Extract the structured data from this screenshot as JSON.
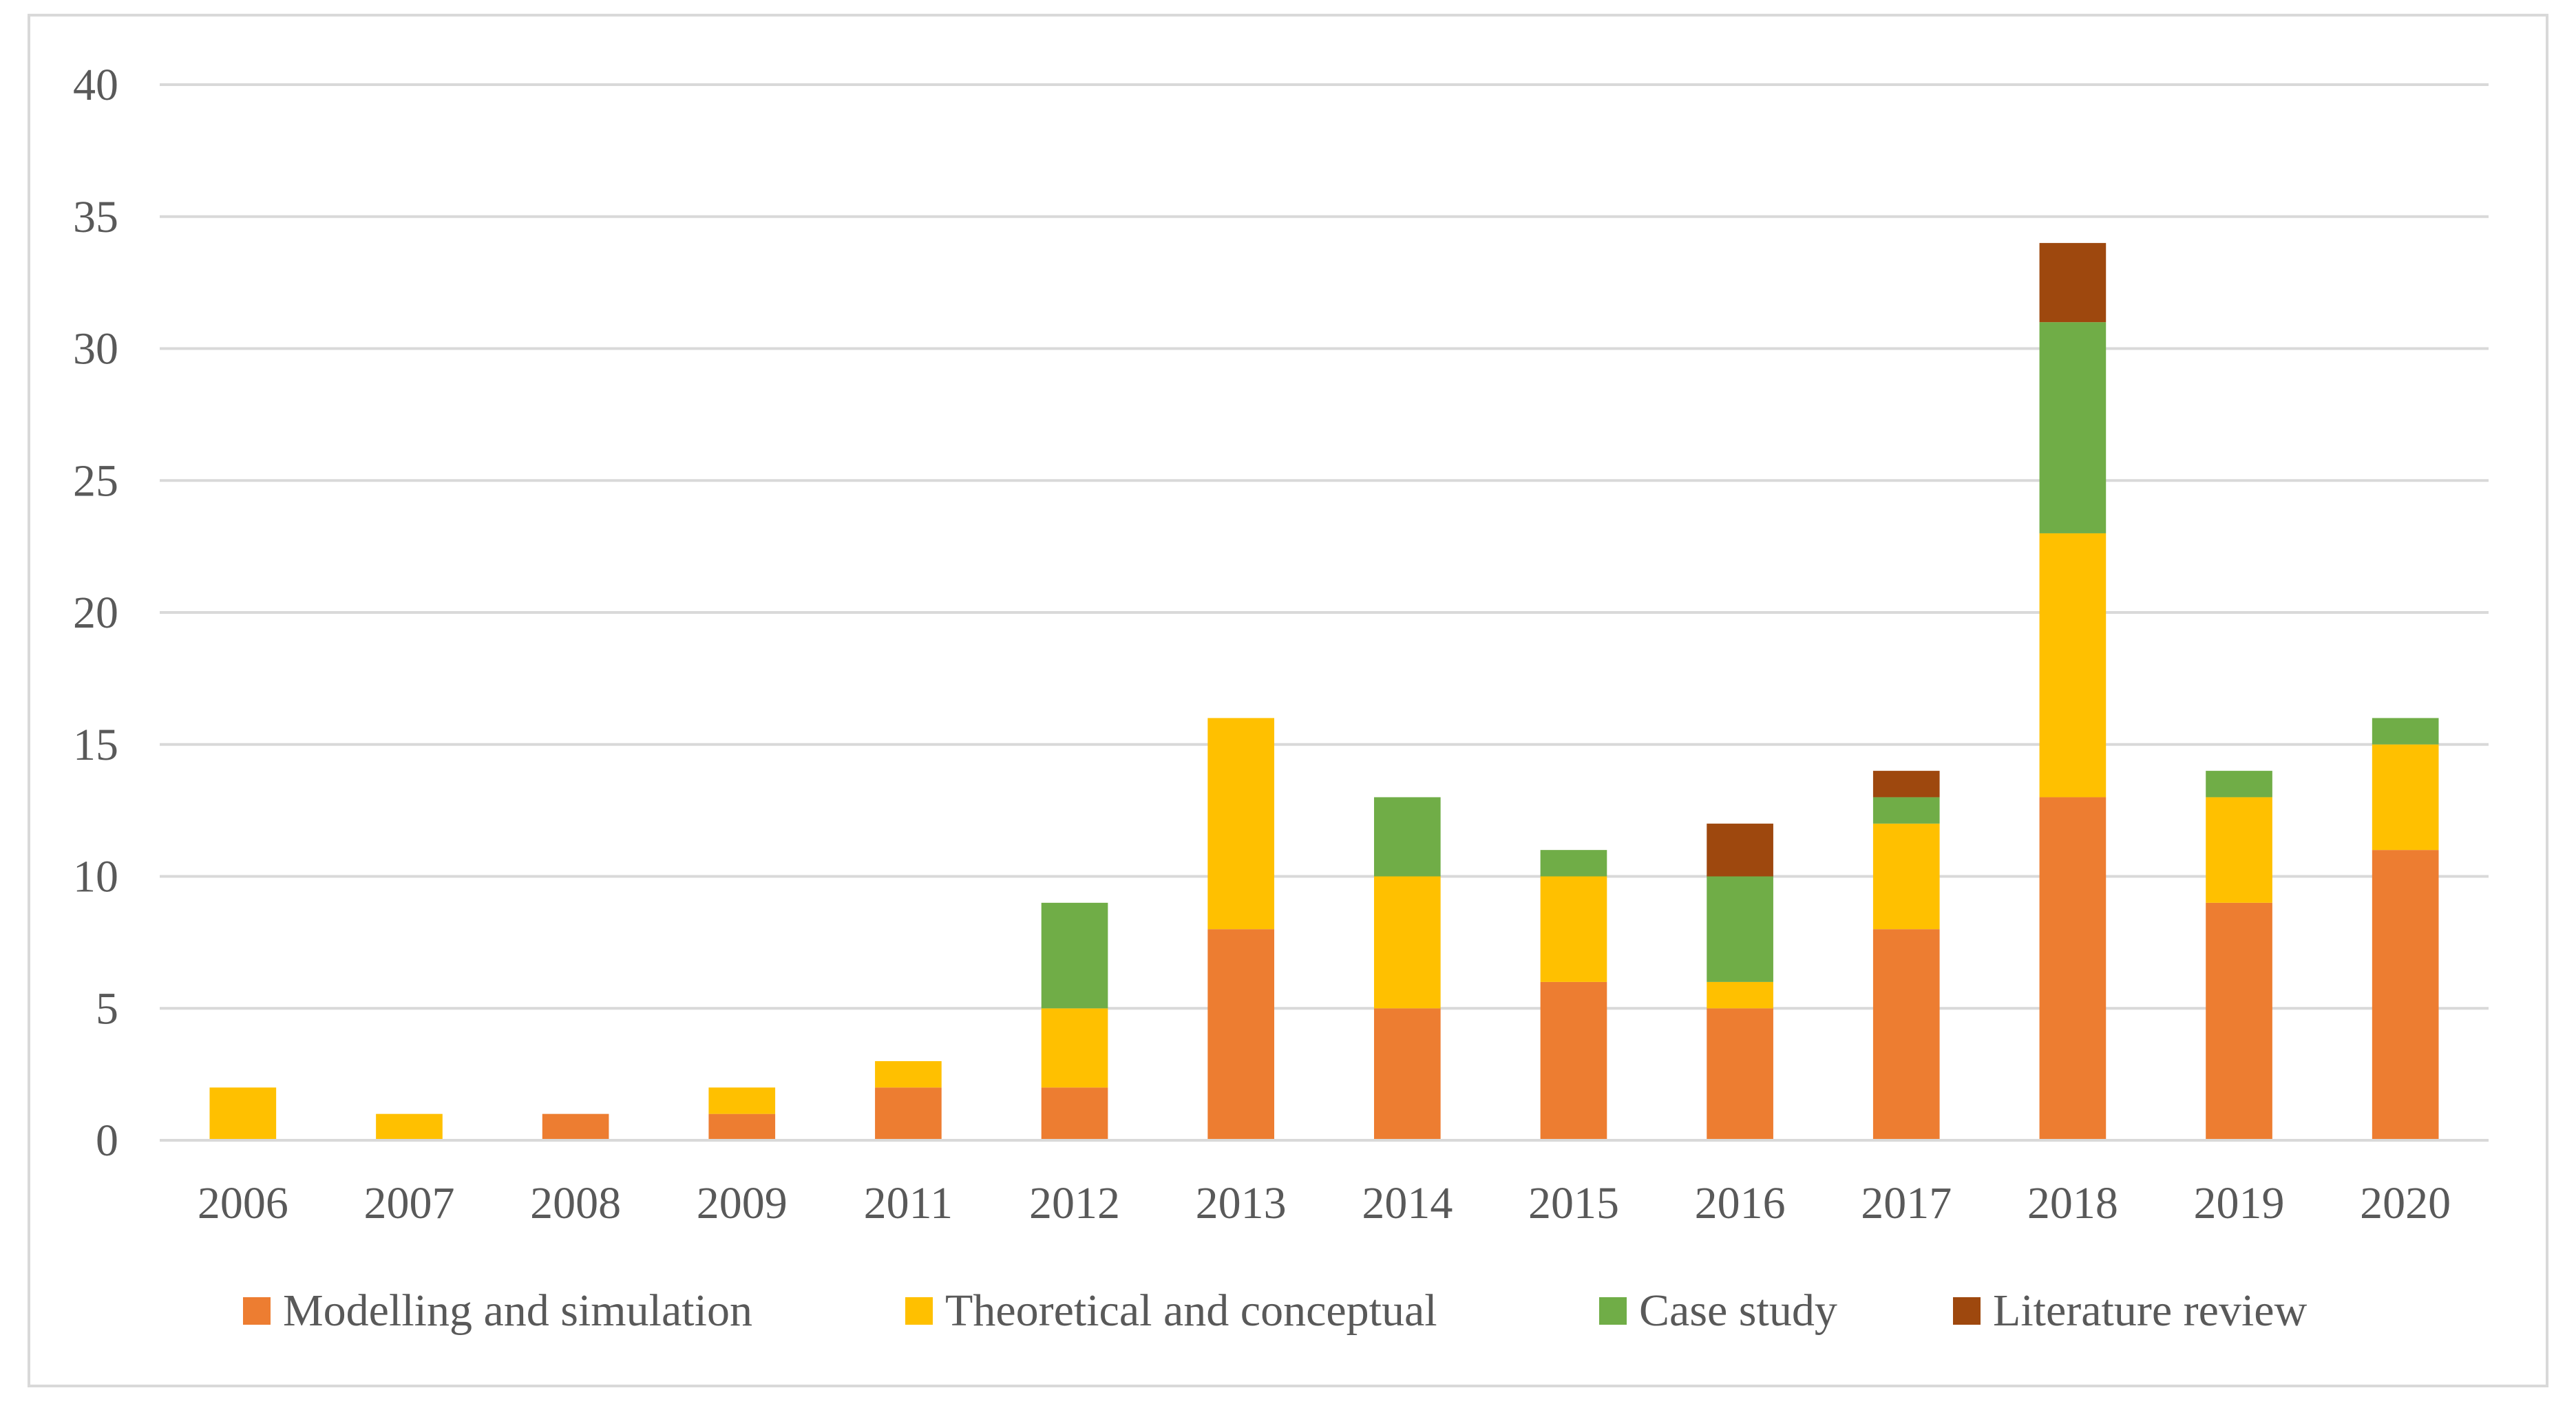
{
  "chart_data": {
    "type": "bar",
    "stacked": true,
    "title": "",
    "xlabel": "",
    "ylabel": "",
    "ylim": [
      0,
      40
    ],
    "yticks": [
      0,
      5,
      10,
      15,
      20,
      25,
      30,
      35,
      40
    ],
    "grid": true,
    "legend_position": "bottom",
    "categories": [
      "2006",
      "2007",
      "2008",
      "2009",
      "2011",
      "2012",
      "2013",
      "2014",
      "2015",
      "2016",
      "2017",
      "2018",
      "2019",
      "2020"
    ],
    "series": [
      {
        "name": "Modelling and simulation",
        "color": "#ED7D31",
        "values": [
          0,
          0,
          1,
          1,
          2,
          2,
          8,
          5,
          6,
          5,
          8,
          13,
          9,
          11
        ]
      },
      {
        "name": "Theoretical and conceptual",
        "color": "#FFC000",
        "values": [
          2,
          1,
          0,
          1,
          1,
          3,
          8,
          5,
          4,
          1,
          4,
          10,
          4,
          4
        ]
      },
      {
        "name": "Case study",
        "color": "#70AD47",
        "values": [
          0,
          0,
          0,
          0,
          0,
          4,
          0,
          3,
          1,
          4,
          1,
          8,
          1,
          1
        ]
      },
      {
        "name": "Literature review",
        "color": "#9E480E",
        "values": [
          0,
          0,
          0,
          0,
          0,
          0,
          0,
          0,
          0,
          2,
          1,
          3,
          0,
          0
        ]
      }
    ]
  }
}
